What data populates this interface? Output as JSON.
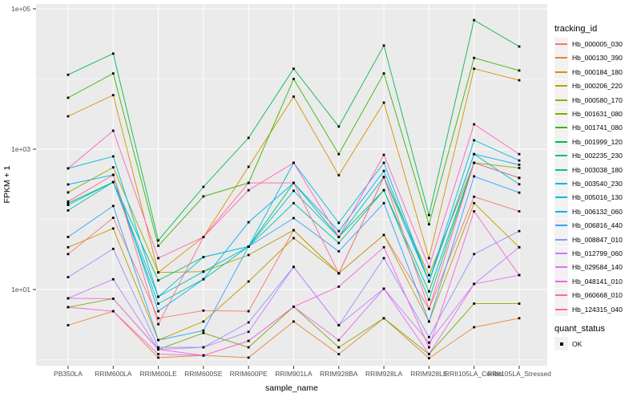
{
  "style": {
    "panel_bg": "#EBEBEB",
    "grid_color": "#FFFFFF",
    "marker_color": "#000000",
    "tick_label_color": "#4D4D4D",
    "axis_title_color": "#000000",
    "legend_key_bg": "#F2F2F2"
  },
  "chart_data": {
    "type": "line",
    "title": "",
    "xlabel": "sample_name",
    "ylabel": "FPKM + 1",
    "y_scale": "log10",
    "ylim_log10": [
      0,
      5.1
    ],
    "grid": "on",
    "legend_position": "right",
    "legend_title": "tracking_id",
    "legend2_title": "quant_status",
    "quant_status_items": [
      "OK"
    ],
    "y_ticks": [
      {
        "label": "1e+01",
        "value": 10
      },
      {
        "label": "1e+03",
        "value": 1000
      },
      {
        "label": "1e+05",
        "value": 100000
      }
    ],
    "y_minor_values": [
      1,
      100,
      10000
    ],
    "categories": [
      "PB350LA",
      "RRIM600LA",
      "RRIM600LE",
      "RRIM600SE",
      "RRIM600PE",
      "RRIM901LA",
      "RRIM928BA",
      "RRIM928LA",
      "RRIM928LE",
      "RRII105LA_Control",
      "RRII105LA_Stressed"
    ],
    "series": [
      {
        "name": "Hb_000005_030",
        "color": "#F8766D",
        "values": [
          32,
          105,
          3.9,
          5,
          4.9,
          70,
          17,
          60,
          5.3,
          210,
          130
        ]
      },
      {
        "name": "Hb_000130_390",
        "color": "#EA8331",
        "values": [
          3.1,
          4.9,
          1.07,
          1.15,
          1.07,
          3.5,
          1.2,
          3.9,
          1.05,
          2.9,
          3.9
        ]
      },
      {
        "name": "Hb_000184_180",
        "color": "#D89000",
        "values": [
          2940,
          5900,
          17.5,
          56,
          560,
          5600,
          425,
          4600,
          28,
          14000,
          9600
        ]
      },
      {
        "name": "Hb_000206_220",
        "color": "#C09B00",
        "values": [
          40,
          74,
          1.9,
          3.5,
          13,
          54,
          17,
          60,
          3.5,
          170,
          40
        ]
      },
      {
        "name": "Hb_000580_170",
        "color": "#A3A500",
        "values": [
          242,
          550,
          17.5,
          18,
          31,
          70,
          17,
          400,
          16,
          640,
          540
        ]
      },
      {
        "name": "Hb_001631_080",
        "color": "#7CAE00",
        "values": [
          5.6,
          7.4,
          1.4,
          2.4,
          1.5,
          5.7,
          1.5,
          3.9,
          1.2,
          6.3,
          6.3
        ]
      },
      {
        "name": "Hb_001741_080",
        "color": "#39B600",
        "values": [
          5400,
          12000,
          42,
          212,
          330,
          10000,
          850,
          12000,
          85,
          20000,
          13200
        ]
      },
      {
        "name": "Hb_001999_120",
        "color": "#00BB4E",
        "values": [
          11500,
          23000,
          50,
          290,
          1450,
          14000,
          2100,
          30000,
          115,
          69000,
          29000
        ]
      },
      {
        "name": "Hb_002235_230",
        "color": "#00BF7D",
        "values": [
          170,
          340,
          13.5,
          29,
          41,
          330,
          56,
          260,
          9.4,
          640,
          390
        ]
      },
      {
        "name": "Hb_003038_180",
        "color": "#00C1A3",
        "values": [
          134,
          340,
          6.3,
          14,
          41,
          170,
          46,
          260,
          7.2,
          640,
          390
        ]
      },
      {
        "name": "Hb_003540_230",
        "color": "#00BFC4",
        "values": [
          160,
          340,
          7.9,
          18,
          41,
          255,
          56,
          400,
          13,
          850,
          316
        ]
      },
      {
        "name": "Hb_005016_130",
        "color": "#00BAE0",
        "values": [
          533,
          790,
          7.9,
          29,
          41,
          640,
          89,
          640,
          13,
          1340,
          690
        ]
      },
      {
        "name": "Hb_006132_060",
        "color": "#00B0F6",
        "values": [
          314,
          430,
          4.9,
          14,
          91,
          330,
          68,
          490,
          13,
          850,
          600
        ]
      },
      {
        "name": "Hb_006816_440",
        "color": "#35A2FF",
        "values": [
          56,
          155,
          1.9,
          2.6,
          41,
          104,
          35,
          170,
          3.5,
          410,
          240
        ]
      },
      {
        "name": "Hb_008847_010",
        "color": "#9590FF",
        "values": [
          15,
          38,
          1.5,
          1.5,
          3.4,
          21,
          3.1,
          28,
          2.1,
          32,
          68
        ]
      },
      {
        "name": "Hb_012799_060",
        "color": "#C77CFF",
        "values": [
          7.5,
          14,
          1.4,
          1.5,
          2.5,
          21,
          3.1,
          10.3,
          1.75,
          12,
          40
        ]
      },
      {
        "name": "Hb_029584_140",
        "color": "#E76BF3",
        "values": [
          7.5,
          7.4,
          1.4,
          1.15,
          1.85,
          5.7,
          1.9,
          10.3,
          1.2,
          12,
          16
        ]
      },
      {
        "name": "Hb_048141_010",
        "color": "#FA62DB",
        "values": [
          5.6,
          4.9,
          1.2,
          1.15,
          1.85,
          5.7,
          11,
          40,
          1.5,
          130,
          16
        ]
      },
      {
        "name": "Hb_060668_010",
        "color": "#FF62BC",
        "values": [
          533,
          1830,
          28,
          56,
          260,
          640,
          56,
          830,
          21,
          2260,
          850
        ]
      },
      {
        "name": "Hb_124315_040",
        "color": "#FF6A98",
        "values": [
          180,
          430,
          3.2,
          56,
          330,
          330,
          17,
          400,
          5.3,
          640,
          390
        ]
      }
    ]
  }
}
